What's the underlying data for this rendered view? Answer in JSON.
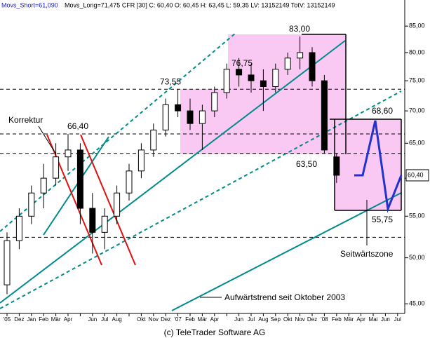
{
  "chart_data": {
    "type": "candlestick",
    "header": {
      "short": "Movs_Short=61,090",
      "rest": "Movs_Long=71,475 CFR [30] C: 60,40 O: 60,45 H: 63,45 L: 59,35 LV: 13152149 TotV: 13152149"
    },
    "categories": [
      "'05",
      "Dez",
      "Jan",
      "Feb",
      "Mär",
      "Apr",
      null,
      "Jun",
      "Jul",
      "Aug",
      null,
      "Okt",
      "Nov",
      "Dez",
      "'07",
      "Feb",
      "Mär",
      "Apr",
      null,
      "Jun",
      "Jul",
      "Aug",
      "Sep",
      "Okt",
      "Nov",
      "Dez",
      "'08",
      "Feb",
      "Mär",
      "Apr",
      "Mai",
      "Jun",
      "Jul"
    ],
    "open": [
      47,
      52,
      55,
      58,
      60,
      63,
      64,
      56,
      53,
      55,
      58,
      61,
      64,
      67,
      71,
      70,
      68,
      70,
      73,
      77,
      76,
      75,
      74,
      77,
      79,
      80,
      75,
      63,
      null,
      null,
      null,
      null,
      null
    ],
    "high": [
      53,
      56,
      59,
      62,
      65,
      66.4,
      65,
      58,
      56,
      59,
      62,
      65,
      68,
      72,
      73.55,
      72,
      71,
      74,
      78,
      79,
      78,
      77,
      78,
      80,
      83,
      81,
      76,
      63.5,
      null,
      null,
      null,
      null,
      null
    ],
    "low": [
      46,
      51,
      54,
      56,
      59,
      61,
      54,
      50.5,
      51,
      54,
      57,
      60,
      63,
      66,
      69,
      67,
      64,
      69,
      72,
      74,
      73,
      70,
      73,
      76,
      77,
      74,
      63.5,
      59.35,
      null,
      null,
      null,
      null,
      null
    ],
    "close": [
      52,
      55,
      58,
      60,
      63,
      64,
      56,
      53,
      55,
      58,
      61,
      64,
      67,
      71,
      70,
      68,
      70,
      73,
      77,
      76,
      75,
      74,
      77,
      79,
      80,
      75,
      64,
      60.4,
      null,
      null,
      null,
      null,
      null
    ],
    "ylim": [
      44.3,
      89.8
    ],
    "log_scale": true,
    "yticks": [
      {
        "value": 45,
        "label": "45,00"
      },
      {
        "value": 50,
        "label": "50,00"
      },
      {
        "value": 55,
        "label": "55,00"
      },
      {
        "value": 60,
        "label": "60,00"
      },
      {
        "value": 65,
        "label": "65,00"
      },
      {
        "value": 70,
        "label": "70,00"
      },
      {
        "value": 75,
        "label": "75,00"
      },
      {
        "value": 80,
        "label": "80,00"
      },
      {
        "value": 85,
        "label": "85,00"
      }
    ],
    "last_price": {
      "value": 60.4,
      "label": "60,40"
    },
    "levels": [
      73.55,
      66.4,
      63.5,
      52.4
    ],
    "annotations": [
      {
        "value": 83,
        "label": "83,00"
      },
      {
        "value": 76.75,
        "label": "76,75"
      },
      {
        "value": 73.55,
        "label": "73,55"
      },
      {
        "value": 66.4,
        "label": "66,40"
      },
      {
        "value": 68.6,
        "label": "68,60"
      },
      {
        "value": 63.5,
        "label": "63,50"
      },
      {
        "value": 55.75,
        "label": "55,75"
      }
    ],
    "notes": {
      "korrektur": "Korrektur",
      "seitwaerts": "Seitwärtszone",
      "trend": "Aufwärtstrend seit Oktober 2003"
    },
    "copyright": "(c) TeleTrader Software AG"
  }
}
